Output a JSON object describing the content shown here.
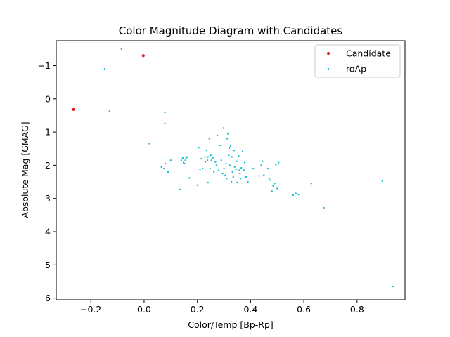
{
  "chart_data": {
    "type": "scatter",
    "title": "Color Magnitude Diagram with Candidates",
    "xlabel": "Color/Temp [Bp-Rp]",
    "ylabel": "Absolute Mag [GMAG]",
    "xlim": [
      -0.33,
      0.98
    ],
    "ylim": [
      6.05,
      -1.75
    ],
    "y_inverted": true,
    "xticks": [
      -0.2,
      0.0,
      0.2,
      0.4,
      0.6,
      0.8
    ],
    "xtick_labels": [
      "−0.2",
      "0.0",
      "0.2",
      "0.4",
      "0.6",
      "0.8"
    ],
    "yticks": [
      -1,
      0,
      1,
      2,
      3,
      4,
      5,
      6
    ],
    "ytick_labels": [
      "−1",
      "0",
      "1",
      "2",
      "3",
      "4",
      "5",
      "6"
    ],
    "grid": false,
    "legend_position": "top-right",
    "series": [
      {
        "name": "Candidate",
        "color": "#e31a1c",
        "points": [
          [
            -0.265,
            0.32
          ],
          [
            -0.003,
            -1.3
          ]
        ]
      },
      {
        "name": "roAp",
        "color": "#17becf",
        "points": [
          [
            -0.085,
            -1.5
          ],
          [
            -0.148,
            -0.9
          ],
          [
            -0.13,
            0.37
          ],
          [
            0.078,
            0.41
          ],
          [
            0.078,
            0.74
          ],
          [
            0.02,
            1.35
          ],
          [
            0.065,
            2.05
          ],
          [
            0.075,
            2.1
          ],
          [
            0.08,
            1.95
          ],
          [
            0.09,
            2.2
          ],
          [
            0.1,
            1.85
          ],
          [
            0.135,
            2.73
          ],
          [
            0.14,
            1.85
          ],
          [
            0.145,
            1.78
          ],
          [
            0.148,
            1.92
          ],
          [
            0.152,
            1.95
          ],
          [
            0.155,
            1.85
          ],
          [
            0.158,
            1.78
          ],
          [
            0.162,
            1.75
          ],
          [
            0.17,
            2.38
          ],
          [
            0.2,
            2.6
          ],
          [
            0.205,
            1.47
          ],
          [
            0.21,
            2.12
          ],
          [
            0.215,
            1.8
          ],
          [
            0.22,
            2.1
          ],
          [
            0.228,
            1.75
          ],
          [
            0.23,
            1.9
          ],
          [
            0.235,
            1.55
          ],
          [
            0.238,
            1.85
          ],
          [
            0.24,
            1.75
          ],
          [
            0.24,
            2.52
          ],
          [
            0.245,
            1.2
          ],
          [
            0.248,
            2.1
          ],
          [
            0.25,
            1.7
          ],
          [
            0.253,
            1.85
          ],
          [
            0.258,
            1.78
          ],
          [
            0.262,
            2.2
          ],
          [
            0.268,
            1.9
          ],
          [
            0.272,
            2.0
          ],
          [
            0.275,
            1.1
          ],
          [
            0.28,
            2.15
          ],
          [
            0.285,
            1.4
          ],
          [
            0.29,
            1.85
          ],
          [
            0.295,
            2.25
          ],
          [
            0.298,
            0.88
          ],
          [
            0.3,
            2.1
          ],
          [
            0.305,
            2.3
          ],
          [
            0.308,
            1.95
          ],
          [
            0.31,
            2.4
          ],
          [
            0.312,
            1.2
          ],
          [
            0.315,
            1.05
          ],
          [
            0.318,
            1.7
          ],
          [
            0.32,
            1.48
          ],
          [
            0.322,
            2.0
          ],
          [
            0.325,
            1.42
          ],
          [
            0.328,
            2.5
          ],
          [
            0.33,
            1.75
          ],
          [
            0.332,
            2.2
          ],
          [
            0.335,
            2.35
          ],
          [
            0.338,
            1.55
          ],
          [
            0.34,
            2.05
          ],
          [
            0.345,
            2.12
          ],
          [
            0.348,
            1.88
          ],
          [
            0.35,
            2.52
          ],
          [
            0.355,
            1.72
          ],
          [
            0.358,
            2.15
          ],
          [
            0.36,
            2.25
          ],
          [
            0.362,
            2.4
          ],
          [
            0.365,
            2.08
          ],
          [
            0.37,
            1.58
          ],
          [
            0.375,
            2.15
          ],
          [
            0.378,
            1.92
          ],
          [
            0.38,
            2.35
          ],
          [
            0.385,
            2.35
          ],
          [
            0.39,
            2.5
          ],
          [
            0.41,
            2.1
          ],
          [
            0.432,
            2.32
          ],
          [
            0.44,
            2.0
          ],
          [
            0.445,
            1.88
          ],
          [
            0.45,
            2.3
          ],
          [
            0.465,
            2.1
          ],
          [
            0.47,
            2.4
          ],
          [
            0.475,
            2.45
          ],
          [
            0.48,
            2.78
          ],
          [
            0.485,
            2.62
          ],
          [
            0.49,
            2.55
          ],
          [
            0.495,
            1.98
          ],
          [
            0.5,
            2.7
          ],
          [
            0.505,
            1.92
          ],
          [
            0.56,
            2.9
          ],
          [
            0.57,
            2.85
          ],
          [
            0.58,
            2.88
          ],
          [
            0.628,
            2.55
          ],
          [
            0.675,
            3.28
          ],
          [
            0.895,
            2.48
          ],
          [
            0.935,
            5.65
          ]
        ]
      }
    ]
  }
}
